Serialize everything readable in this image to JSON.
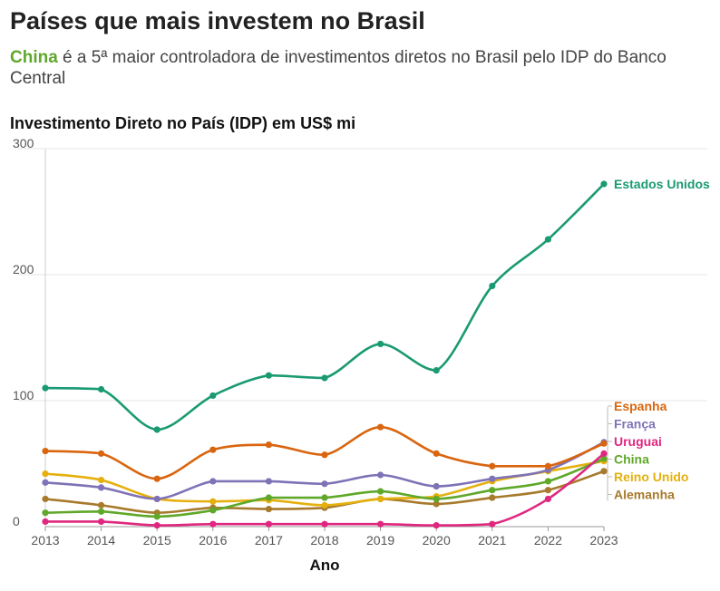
{
  "header": {
    "title": "Países que mais investem no Brasil",
    "subtitle_highlight": "China",
    "subtitle_rest": " é a 5ª maior controladora de investimentos diretos no Brasil pelo IDP do Banco Central"
  },
  "chart_data": {
    "type": "line",
    "title": "Investimento Direto no País (IDP) em US$ mi",
    "xlabel": "Ano",
    "ylabel": "",
    "ylim": [
      0,
      300
    ],
    "yticks": [
      0,
      100,
      200,
      300
    ],
    "categories": [
      "2013",
      "2014",
      "2015",
      "2016",
      "2017",
      "2018",
      "2019",
      "2020",
      "2021",
      "2022",
      "2023"
    ],
    "series": [
      {
        "name": "Estados Unidos",
        "color": "#1a9a72",
        "values": [
          110,
          109,
          77,
          104,
          120,
          118,
          145,
          124,
          191,
          228,
          272
        ]
      },
      {
        "name": "Espanha",
        "color": "#d9650f",
        "values": [
          60,
          58,
          38,
          61,
          65,
          57,
          79,
          58,
          48,
          48,
          66
        ]
      },
      {
        "name": "França",
        "color": "#7f72b6",
        "values": [
          35,
          31,
          22,
          36,
          36,
          34,
          41,
          32,
          38,
          45,
          67
        ]
      },
      {
        "name": "Uruguai",
        "color": "#e0277f",
        "values": [
          4,
          4,
          1,
          2,
          2,
          2,
          2,
          1,
          2,
          22,
          58
        ]
      },
      {
        "name": "China",
        "color": "#5fa82a",
        "values": [
          11,
          12,
          8,
          13,
          23,
          23,
          28,
          22,
          29,
          36,
          54
        ]
      },
      {
        "name": "Reino Unido",
        "color": "#e5b00e",
        "values": [
          42,
          37,
          22,
          20,
          21,
          17,
          22,
          24,
          36,
          44,
          52
        ]
      },
      {
        "name": "Alemanha",
        "color": "#a77a2c",
        "values": [
          22,
          17,
          11,
          15,
          14,
          15,
          22,
          18,
          23,
          29,
          44
        ]
      }
    ]
  }
}
